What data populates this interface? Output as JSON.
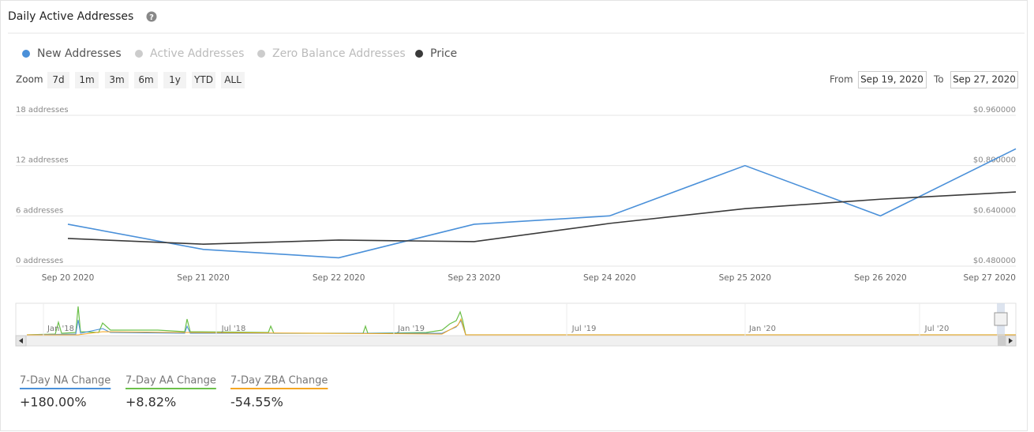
{
  "header": {
    "title": "Daily Active Addresses"
  },
  "controls": {
    "zoom_label": "Zoom",
    "zoom_buttons": [
      "7d",
      "1m",
      "3m",
      "6m",
      "1y",
      "YTD",
      "ALL"
    ],
    "from_label": "From",
    "from_value": "Sep 19, 2020",
    "to_label": "To",
    "to_value": "Sep 27, 2020"
  },
  "chart_data": {
    "type": "line",
    "categories": [
      "Sep 20 2020",
      "Sep 21 2020",
      "Sep 22 2020",
      "Sep 23 2020",
      "Sep 24 2020",
      "Sep 25 2020",
      "Sep 26 2020",
      "Sep 27 2020"
    ],
    "series": [
      {
        "name": "New Addresses",
        "color": "#4a90d9",
        "values": [
          5,
          2,
          1,
          5,
          6,
          12,
          6,
          14
        ]
      },
      {
        "name": "Price",
        "color": "#3a3a3a",
        "axis": "y2",
        "values": [
          0.568,
          0.55,
          0.563,
          0.558,
          0.616,
          0.663,
          0.693,
          0.716
        ]
      }
    ],
    "hidden_series": [
      {
        "name": "Active Addresses",
        "color": "#cccccc"
      },
      {
        "name": "Zero Balance Addresses",
        "color": "#cccccc"
      }
    ],
    "ylim": [
      0,
      18
    ],
    "yticks": [
      {
        "value": 0,
        "label": "0 addresses"
      },
      {
        "value": 6,
        "label": "6 addresses"
      },
      {
        "value": 12,
        "label": "12 addresses"
      },
      {
        "value": 18,
        "label": "18 addresses"
      }
    ],
    "y2lim": [
      0.48,
      0.96
    ],
    "y2ticks": [
      {
        "value": 0.48,
        "label": "$0.480000"
      },
      {
        "value": 0.64,
        "label": "$0.640000"
      },
      {
        "value": 0.8,
        "label": "$0.800000"
      },
      {
        "value": 0.96,
        "label": "$0.960000"
      }
    ],
    "grid": true
  },
  "navigator": {
    "labels": [
      "Jan '18",
      "Jul '18",
      "Jan '19",
      "Jul '19",
      "Jan '20",
      "Jul '20"
    ]
  },
  "stats": [
    {
      "label": "7-Day NA Change",
      "value": "+180.00%",
      "color": "#4a90d9"
    },
    {
      "label": "7-Day AA Change",
      "value": "+8.82%",
      "color": "#6cc04a"
    },
    {
      "label": "7-Day ZBA Change",
      "value": "-54.55%",
      "color": "#f5a623"
    }
  ]
}
